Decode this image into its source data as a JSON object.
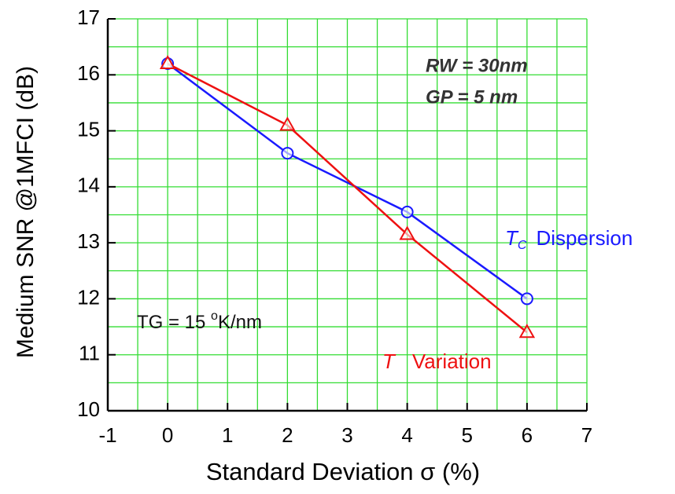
{
  "chart_data": {
    "type": "line",
    "x_label": "Standard Deviation σ (%)",
    "y_label": "Medium SNR @1MFCI (dB)",
    "xlim": [
      -1,
      7
    ],
    "xticks": [
      -1,
      0,
      1,
      2,
      3,
      4,
      5,
      6,
      7
    ],
    "ylim": [
      10,
      17
    ],
    "yticks": [
      10,
      11,
      12,
      13,
      14,
      15,
      16,
      17
    ],
    "grid": true,
    "grid_color": "#33dd33",
    "series": [
      {
        "symbol": "T",
        "subscript": "C",
        "name": "Dispersion",
        "color": "#1a1aff",
        "marker": "circle",
        "x": [
          0,
          2,
          4,
          6
        ],
        "values": [
          16.2,
          14.6,
          13.55,
          12.0
        ]
      },
      {
        "symbol": "T",
        "name": "Variation",
        "color": "#ee1111",
        "marker": "triangle",
        "x": [
          0,
          2,
          4,
          6
        ],
        "values": [
          16.2,
          15.1,
          13.15,
          11.4
        ]
      }
    ],
    "annotations": [
      {
        "text": "RW = 30nm"
      },
      {
        "text": "GP = 5 nm"
      },
      {
        "parts": [
          "TG = 15 ",
          "o",
          "K/nm"
        ]
      }
    ]
  }
}
